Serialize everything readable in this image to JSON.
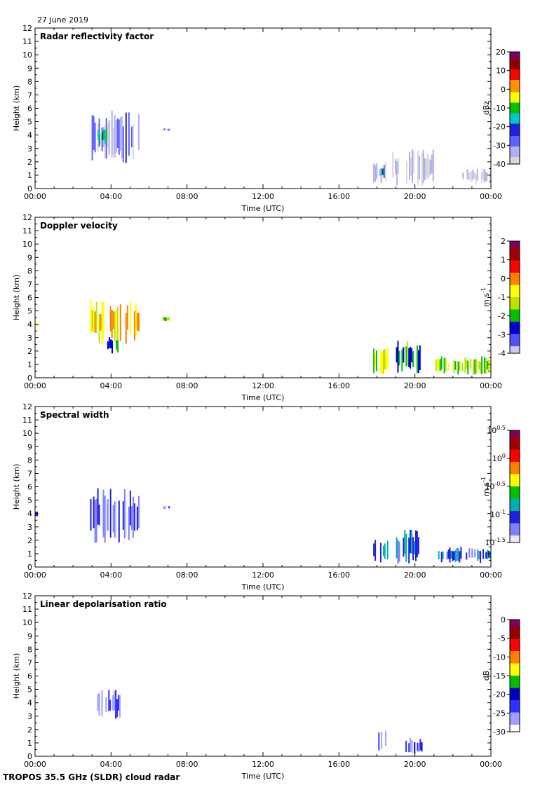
{
  "date_label": "27 June 2019",
  "footer_label": "TROPOS 35.5 GHz (SLDR) cloud radar",
  "colors": {
    "reflectivity_scale": [
      "#d8d8d8",
      "#b0b0f0",
      "#6060ff",
      "#2020e0",
      "#00c8c8",
      "#00c000",
      "#ffff00",
      "#ff9000",
      "#ff0000",
      "#900000",
      "#800060"
    ],
    "velocity_scale": [
      "#c8c8ff",
      "#5050ff",
      "#0000d0",
      "#00c000",
      "#c0e000",
      "#ffff00",
      "#ff8000",
      "#ff0000",
      "#a00000",
      "#800060"
    ],
    "width_scale": [
      "#e8e8ff",
      "#8080ff",
      "#2020e0",
      "#00b0b0",
      "#00c000",
      "#ffff00",
      "#ff8000",
      "#ff0000",
      "#a00000",
      "#800060"
    ],
    "ldr_scale": [
      "#ffffff",
      "#a0a0ff",
      "#3030ff",
      "#0000c0",
      "#00c000",
      "#ffff00",
      "#ff8000",
      "#ff0000",
      "#900000",
      "#800060"
    ]
  },
  "chart_data": [
    {
      "type": "heatmap",
      "title": "Radar reflectivity factor",
      "xlabel": "Time (UTC)",
      "ylabel": "Height (km)",
      "x_ticks": [
        "00:00",
        "04:00",
        "08:00",
        "12:00",
        "16:00",
        "20:00",
        "00:00"
      ],
      "x_range_hours": [
        0,
        24
      ],
      "y_ticks": [
        "0",
        "1",
        "2",
        "3",
        "4",
        "5",
        "6",
        "7",
        "8",
        "9",
        "10",
        "11",
        "12"
      ],
      "y_range_km": [
        0,
        12
      ],
      "colorbar": {
        "label": "dBz",
        "ticks": [
          "20",
          "10",
          "0",
          "-10",
          "-20",
          "-30",
          "-40"
        ],
        "range": [
          -40,
          20
        ],
        "palette": "reflectivity_scale"
      },
      "features": [
        {
          "t0": 2.9,
          "t1": 5.5,
          "h0": 1.8,
          "h1": 5.9,
          "value": -32
        },
        {
          "t0": 3.3,
          "t1": 3.8,
          "h0": 3.2,
          "h1": 4.5,
          "value": -12
        },
        {
          "t0": 6.7,
          "t1": 7.1,
          "h0": 4.3,
          "h1": 4.5,
          "value": -33
        },
        {
          "t0": 17.8,
          "t1": 18.5,
          "h0": 0.3,
          "h1": 2.1,
          "value": -34
        },
        {
          "t0": 18.2,
          "t1": 18.4,
          "h0": 0.8,
          "h1": 1.6,
          "value": -15
        },
        {
          "t0": 18.8,
          "t1": 21.0,
          "h0": 0.2,
          "h1": 3.0,
          "value": -40
        },
        {
          "t0": 22.5,
          "t1": 24.0,
          "h0": 0.3,
          "h1": 1.5,
          "value": -40
        }
      ]
    },
    {
      "type": "heatmap",
      "title": "Doppler velocity",
      "xlabel": "Time (UTC)",
      "ylabel": "Height (km)",
      "x_ticks": [
        "00:00",
        "04:00",
        "08:00",
        "12:00",
        "16:00",
        "20:00",
        "00:00"
      ],
      "x_range_hours": [
        0,
        24
      ],
      "y_ticks": [
        "0",
        "1",
        "2",
        "3",
        "4",
        "5",
        "6",
        "7",
        "8",
        "9",
        "10",
        "11",
        "12"
      ],
      "y_range_km": [
        0,
        12
      ],
      "colorbar": {
        "label": "m s-1",
        "ticks": [
          "2",
          "1",
          "0",
          "-1",
          "-2",
          "-3",
          "-4"
        ],
        "range": [
          -4,
          2
        ],
        "palette": "velocity_scale"
      },
      "features": [
        {
          "t0": 0.0,
          "t1": 0.15,
          "h0": 3.6,
          "h1": 4.3,
          "value": 0
        },
        {
          "t0": 2.9,
          "t1": 5.5,
          "h0": 2.5,
          "h1": 5.9,
          "value": -0.5
        },
        {
          "t0": 3.8,
          "t1": 4.4,
          "h0": 1.8,
          "h1": 3.2,
          "value": -2.3
        },
        {
          "t0": 6.7,
          "t1": 7.1,
          "h0": 4.2,
          "h1": 4.6,
          "value": -1.7
        },
        {
          "t0": 17.8,
          "t1": 18.6,
          "h0": 0.2,
          "h1": 2.3,
          "value": -1.2
        },
        {
          "t0": 19.0,
          "t1": 20.3,
          "h0": 0.3,
          "h1": 2.8,
          "value": -2.2
        },
        {
          "t0": 21.0,
          "t1": 24.0,
          "h0": 0.2,
          "h1": 1.6,
          "value": -1.5
        }
      ]
    },
    {
      "type": "heatmap",
      "title": "Spectral width",
      "xlabel": "Time (UTC)",
      "ylabel": "Height (km)",
      "x_ticks": [
        "00:00",
        "04:00",
        "08:00",
        "12:00",
        "16:00",
        "20:00",
        "00:00"
      ],
      "x_range_hours": [
        0,
        24
      ],
      "y_ticks": [
        "0",
        "1",
        "2",
        "3",
        "4",
        "5",
        "6",
        "7",
        "8",
        "9",
        "10",
        "11",
        "12"
      ],
      "y_range_km": [
        0,
        12
      ],
      "colorbar": {
        "label": "m s-1",
        "ticks": [
          "10^0.5",
          "10^0",
          "10^-0.5",
          "10^-1",
          "10^-1.5"
        ],
        "range": [
          -1.5,
          0.5
        ],
        "palette": "width_scale"
      },
      "features": [
        {
          "t0": 0.0,
          "t1": 0.15,
          "h0": 3.6,
          "h1": 4.2,
          "value": -1.25
        },
        {
          "t0": 2.9,
          "t1": 5.5,
          "h0": 1.8,
          "h1": 5.9,
          "value": -1.2
        },
        {
          "t0": 6.7,
          "t1": 7.1,
          "h0": 4.3,
          "h1": 4.6,
          "value": -1.2
        },
        {
          "t0": 17.8,
          "t1": 18.6,
          "h0": 0.2,
          "h1": 2.3,
          "value": -0.9
        },
        {
          "t0": 19.0,
          "t1": 20.3,
          "h0": 0.2,
          "h1": 2.8,
          "value": -1.0
        },
        {
          "t0": 21.0,
          "t1": 24.0,
          "h0": 0.3,
          "h1": 1.5,
          "value": -1.1
        }
      ]
    },
    {
      "type": "heatmap",
      "title": "Linear depolarisation ratio",
      "xlabel": "Time (UTC)",
      "ylabel": "Height (km)",
      "x_ticks": [
        "00:00",
        "04:00",
        "08:00",
        "12:00",
        "16:00",
        "20:00",
        "00:00"
      ],
      "x_range_hours": [
        0,
        24
      ],
      "y_ticks": [
        "0",
        "1",
        "2",
        "3",
        "4",
        "5",
        "6",
        "7",
        "8",
        "9",
        "10",
        "11",
        "12"
      ],
      "y_range_km": [
        0,
        12
      ],
      "colorbar": {
        "label": "dB",
        "ticks": [
          "0",
          "-5",
          "-10",
          "-15",
          "-20",
          "-25",
          "-30"
        ],
        "range": [
          -30,
          0
        ],
        "palette": "ldr_scale"
      },
      "features": [
        {
          "t0": 3.2,
          "t1": 4.5,
          "h0": 2.6,
          "h1": 5.0,
          "value": -25
        },
        {
          "t0": 18.0,
          "t1": 18.5,
          "h0": 0.2,
          "h1": 2.0,
          "value": -27
        },
        {
          "t0": 19.5,
          "t1": 20.4,
          "h0": 0.1,
          "h1": 1.4,
          "value": -25
        }
      ]
    }
  ]
}
